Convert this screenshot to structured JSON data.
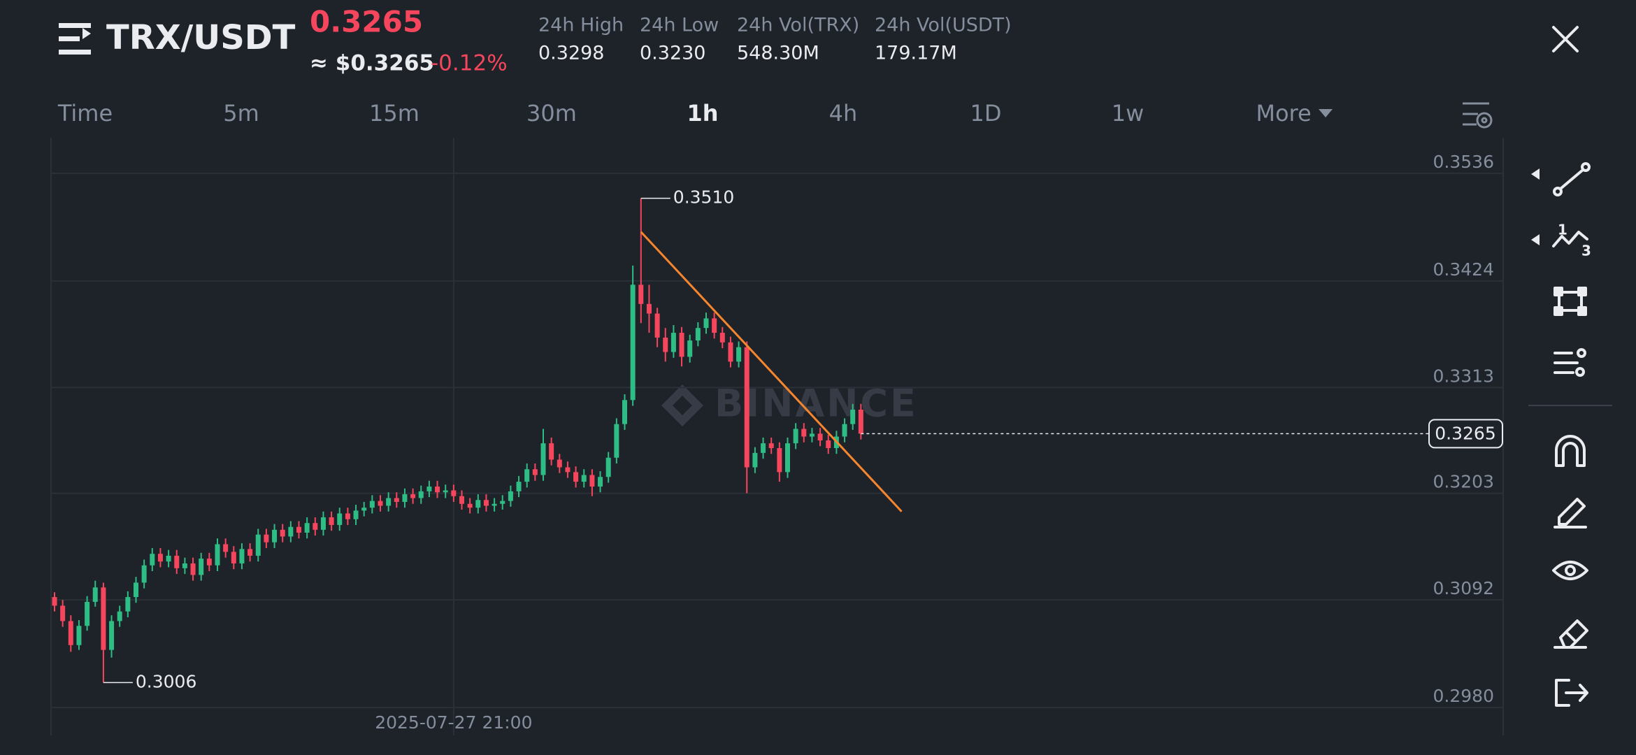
{
  "ui": {
    "symbol": "TRX/USDT",
    "price": "0.3265",
    "usd_price": "≈ $0.3265",
    "change": "-0.12%",
    "stats": [
      {
        "label": "24h High",
        "value": "0.3298"
      },
      {
        "label": "24h Low",
        "value": "0.3230"
      },
      {
        "label": "24h Vol(TRX)",
        "value": "548.30M"
      },
      {
        "label": "24h Vol(USDT)",
        "value": "179.17M"
      }
    ],
    "timeframes": [
      "Time",
      "5m",
      "15m",
      "30m",
      "1h",
      "4h",
      "1D",
      "1w",
      "More"
    ],
    "watermark": "BINANCE"
  },
  "chart_data": {
    "type": "candlestick",
    "up_color": "#2ebd85",
    "down_color": "#f6465d",
    "grid": true,
    "ylim": [
      0.2951,
      0.3573
    ],
    "yticks": [
      0.3536,
      0.3424,
      0.3313,
      0.3203,
      0.3092,
      {
        "value": 0.298,
        "label": "0.2980"
      }
    ],
    "last_price": 0.3265,
    "annotations": [
      {
        "value": 0.351,
        "label": "0.3510"
      },
      {
        "value": 0.3006,
        "label": "0.3006"
      }
    ],
    "trend_line": {
      "color": "#f5862e",
      "start": [
        72,
        0.3475
      ],
      "end": [
        104,
        0.3184
      ]
    },
    "categories": [
      null,
      null,
      null,
      null,
      null,
      null,
      null,
      null,
      null,
      null,
      null,
      null,
      null,
      null,
      null,
      null,
      null,
      null,
      null,
      null,
      null,
      null,
      null,
      null,
      null,
      null,
      null,
      null,
      null,
      null,
      null,
      null,
      null,
      null,
      null,
      null,
      null,
      null,
      null,
      null,
      null,
      null,
      null,
      null,
      null,
      null,
      null,
      null,
      null,
      "2025-07-27 21:00",
      null,
      null,
      null,
      null,
      null,
      null,
      null,
      null,
      null,
      null,
      null,
      null,
      null,
      null,
      null,
      null,
      null,
      null,
      null,
      null,
      null,
      null,
      null,
      null,
      null,
      null,
      null,
      null,
      null,
      null,
      null,
      null,
      null,
      null,
      null,
      null,
      null,
      null,
      null,
      null,
      null,
      null,
      null,
      null,
      null,
      null,
      null,
      null,
      null,
      null
    ],
    "candles": [
      [
        0.3095,
        0.31,
        0.308,
        0.3086
      ],
      [
        0.3086,
        0.3092,
        0.3064,
        0.307
      ],
      [
        0.307,
        0.3076,
        0.3038,
        0.3045
      ],
      [
        0.3045,
        0.3071,
        0.304,
        0.3065
      ],
      [
        0.3065,
        0.3096,
        0.306,
        0.309
      ],
      [
        0.309,
        0.3112,
        0.3085,
        0.3105
      ],
      [
        0.3105,
        0.311,
        0.3006,
        0.304
      ],
      [
        0.304,
        0.3076,
        0.3032,
        0.307
      ],
      [
        0.307,
        0.3086,
        0.3064,
        0.308
      ],
      [
        0.308,
        0.3101,
        0.3074,
        0.3095
      ],
      [
        0.3095,
        0.3116,
        0.3089,
        0.311
      ],
      [
        0.311,
        0.3134,
        0.3104,
        0.3128
      ],
      [
        0.3128,
        0.3146,
        0.3122,
        0.314
      ],
      [
        0.314,
        0.3146,
        0.3126,
        0.3132
      ],
      [
        0.3132,
        0.3144,
        0.3126,
        0.3138
      ],
      [
        0.3138,
        0.3144,
        0.3119,
        0.3125
      ],
      [
        0.3125,
        0.3136,
        0.3119,
        0.313
      ],
      [
        0.313,
        0.3136,
        0.3112,
        0.3118
      ],
      [
        0.3118,
        0.3141,
        0.3112,
        0.3135
      ],
      [
        0.3135,
        0.3141,
        0.3122,
        0.3128
      ],
      [
        0.3128,
        0.3156,
        0.3122,
        0.315
      ],
      [
        0.315,
        0.3156,
        0.3136,
        0.3142
      ],
      [
        0.3142,
        0.3148,
        0.3124,
        0.313
      ],
      [
        0.313,
        0.3151,
        0.3124,
        0.3145
      ],
      [
        0.3145,
        0.3151,
        0.3132,
        0.3138
      ],
      [
        0.3138,
        0.3166,
        0.3132,
        0.316
      ],
      [
        0.316,
        0.3166,
        0.3146,
        0.3152
      ],
      [
        0.3152,
        0.3171,
        0.3146,
        0.3165
      ],
      [
        0.3165,
        0.3171,
        0.3152,
        0.3158
      ],
      [
        0.3158,
        0.3174,
        0.3152,
        0.3168
      ],
      [
        0.3168,
        0.3174,
        0.3156,
        0.3162
      ],
      [
        0.3162,
        0.3178,
        0.3156,
        0.3172
      ],
      [
        0.3172,
        0.3178,
        0.3159,
        0.3165
      ],
      [
        0.3165,
        0.3184,
        0.3159,
        0.3178
      ],
      [
        0.3178,
        0.3184,
        0.3164,
        0.317
      ],
      [
        0.317,
        0.3188,
        0.3164,
        0.3182
      ],
      [
        0.3182,
        0.3188,
        0.317,
        0.3176
      ],
      [
        0.3176,
        0.3191,
        0.317,
        0.3185
      ],
      [
        0.3185,
        0.3194,
        0.3179,
        0.3188
      ],
      [
        0.3188,
        0.3201,
        0.3182,
        0.3195
      ],
      [
        0.3195,
        0.3201,
        0.3184,
        0.319
      ],
      [
        0.319,
        0.3204,
        0.3184,
        0.3198
      ],
      [
        0.3198,
        0.3204,
        0.3188,
        0.3194
      ],
      [
        0.3194,
        0.3208,
        0.3188,
        0.3202
      ],
      [
        0.3202,
        0.3208,
        0.3192,
        0.3198
      ],
      [
        0.3198,
        0.3211,
        0.3192,
        0.3205
      ],
      [
        0.3205,
        0.3216,
        0.3199,
        0.321
      ],
      [
        0.321,
        0.3216,
        0.3198,
        0.3204
      ],
      [
        0.3204,
        0.3212,
        0.3198,
        0.3206
      ],
      [
        0.3206,
        0.3212,
        0.3194,
        0.32
      ],
      [
        0.32,
        0.3206,
        0.3186,
        0.3192
      ],
      [
        0.3192,
        0.3198,
        0.3182,
        0.3188
      ],
      [
        0.3188,
        0.3202,
        0.3182,
        0.3196
      ],
      [
        0.3196,
        0.3202,
        0.3184,
        0.319
      ],
      [
        0.319,
        0.3198,
        0.3184,
        0.3192
      ],
      [
        0.3192,
        0.3201,
        0.3186,
        0.3195
      ],
      [
        0.3195,
        0.3211,
        0.3189,
        0.3205
      ],
      [
        0.3205,
        0.3221,
        0.3199,
        0.3215
      ],
      [
        0.3215,
        0.3234,
        0.3209,
        0.3228
      ],
      [
        0.3228,
        0.3234,
        0.3216,
        0.3222
      ],
      [
        0.3222,
        0.327,
        0.3216,
        0.3255
      ],
      [
        0.3255,
        0.3261,
        0.3232,
        0.3238
      ],
      [
        0.3238,
        0.3244,
        0.3224,
        0.323
      ],
      [
        0.323,
        0.3236,
        0.3219,
        0.3225
      ],
      [
        0.3225,
        0.3231,
        0.3209,
        0.3215
      ],
      [
        0.3215,
        0.3228,
        0.3209,
        0.3222
      ],
      [
        0.3222,
        0.3228,
        0.32,
        0.321
      ],
      [
        0.321,
        0.3226,
        0.3204,
        0.322
      ],
      [
        0.322,
        0.3246,
        0.3214,
        0.324
      ],
      [
        0.324,
        0.3281,
        0.3234,
        0.3275
      ],
      [
        0.3275,
        0.3306,
        0.3269,
        0.33
      ],
      [
        0.33,
        0.344,
        0.3294,
        0.342
      ],
      [
        0.342,
        0.351,
        0.338,
        0.34
      ],
      [
        0.34,
        0.342,
        0.337,
        0.339
      ],
      [
        0.339,
        0.3396,
        0.3355,
        0.3365
      ],
      [
        0.3365,
        0.3375,
        0.334,
        0.335
      ],
      [
        0.335,
        0.3378,
        0.3344,
        0.337
      ],
      [
        0.337,
        0.3376,
        0.3335,
        0.3345
      ],
      [
        0.3345,
        0.3368,
        0.3339,
        0.3362
      ],
      [
        0.3362,
        0.3381,
        0.3356,
        0.3375
      ],
      [
        0.3375,
        0.3391,
        0.3369,
        0.3385
      ],
      [
        0.3385,
        0.3391,
        0.3364,
        0.337
      ],
      [
        0.337,
        0.3376,
        0.3354,
        0.336
      ],
      [
        0.336,
        0.3366,
        0.3334,
        0.334
      ],
      [
        0.334,
        0.3361,
        0.3334,
        0.3355
      ],
      [
        0.3355,
        0.3361,
        0.3203,
        0.323
      ],
      [
        0.323,
        0.3251,
        0.3224,
        0.3245
      ],
      [
        0.3245,
        0.3261,
        0.3239,
        0.3255
      ],
      [
        0.3255,
        0.3261,
        0.3244,
        0.325
      ],
      [
        0.325,
        0.3256,
        0.3215,
        0.3225
      ],
      [
        0.3225,
        0.3261,
        0.3219,
        0.3255
      ],
      [
        0.3255,
        0.3276,
        0.3249,
        0.327
      ],
      [
        0.327,
        0.3276,
        0.3256,
        0.3262
      ],
      [
        0.3262,
        0.3271,
        0.3256,
        0.3265
      ],
      [
        0.3265,
        0.3271,
        0.3252,
        0.3258
      ],
      [
        0.3258,
        0.3264,
        0.3244,
        0.325
      ],
      [
        0.325,
        0.3268,
        0.3244,
        0.3262
      ],
      [
        0.3262,
        0.3281,
        0.3256,
        0.3275
      ],
      [
        0.3275,
        0.3296,
        0.3269,
        0.329
      ],
      [
        0.329,
        0.3296,
        0.3259,
        0.3265
      ]
    ]
  }
}
